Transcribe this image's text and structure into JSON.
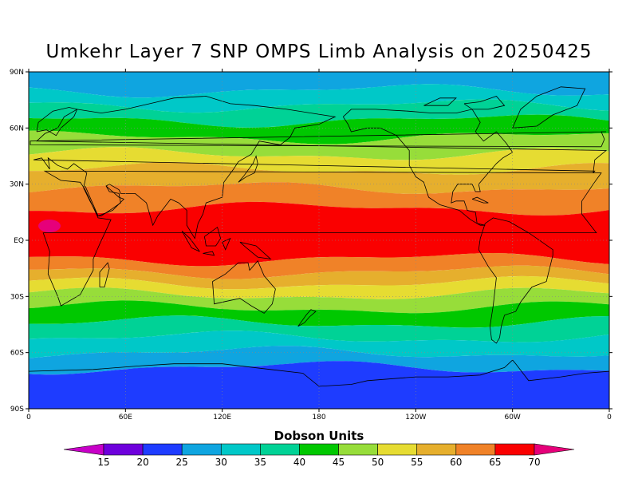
{
  "title": "Umkehr Layer 7 SNP OMPS Limb Analysis on 20250425",
  "map": {
    "lat_labels": [
      "90N",
      "60N",
      "30N",
      "EQ",
      "30S",
      "60S",
      "90S"
    ],
    "lon_labels": [
      "0",
      "60E",
      "120E",
      "180",
      "120W",
      "60W",
      "0"
    ],
    "bands": [
      {
        "lat": 90,
        "color": "#0fa5e0"
      },
      {
        "lat": 80,
        "color": "#00c8c8"
      },
      {
        "lat": 72,
        "color": "#00d296"
      },
      {
        "lat": 64,
        "color": "#00c800"
      },
      {
        "lat": 55,
        "color": "#97dd3a"
      },
      {
        "lat": 46,
        "color": "#e6dc32"
      },
      {
        "lat": 38,
        "color": "#e6af2d"
      },
      {
        "lat": 28,
        "color": "#f08228"
      },
      {
        "lat": 17,
        "color": "#fa0000"
      },
      {
        "lat": -10,
        "color": "#f08228"
      },
      {
        "lat": -17,
        "color": "#e6af2d"
      },
      {
        "lat": -23,
        "color": "#e6dc32"
      },
      {
        "lat": -29,
        "color": "#97dd3a"
      },
      {
        "lat": -36,
        "color": "#00c800"
      },
      {
        "lat": -44,
        "color": "#00d296"
      },
      {
        "lat": -52,
        "color": "#00c8c8"
      },
      {
        "lat": -60,
        "color": "#0fa5e0"
      },
      {
        "lat": -68,
        "color": "#1e3cff"
      }
    ]
  },
  "colorbar": {
    "title": "Dobson Units",
    "labels": [
      "15",
      "20",
      "25",
      "30",
      "35",
      "40",
      "45",
      "50",
      "55",
      "60",
      "65",
      "70"
    ],
    "colors": [
      "#a000c8",
      "#6e00dc",
      "#1e3cff",
      "#0fa5e0",
      "#00c8c8",
      "#00d296",
      "#00c800",
      "#97dd3a",
      "#e6dc32",
      "#e6af2d",
      "#f08228",
      "#fa0000"
    ],
    "low_arrow_color": "#c800c8",
    "high_arrow_color": "#e6007a"
  }
}
